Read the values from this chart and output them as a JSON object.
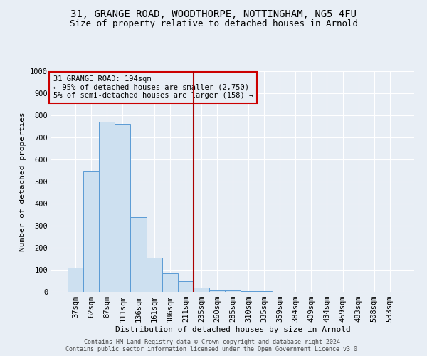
{
  "title_line1": "31, GRANGE ROAD, WOODTHORPE, NOTTINGHAM, NG5 4FU",
  "title_line2": "Size of property relative to detached houses in Arnold",
  "xlabel": "Distribution of detached houses by size in Arnold",
  "ylabel": "Number of detached properties",
  "categories": [
    "37sqm",
    "62sqm",
    "87sqm",
    "111sqm",
    "136sqm",
    "161sqm",
    "186sqm",
    "211sqm",
    "235sqm",
    "260sqm",
    "285sqm",
    "310sqm",
    "335sqm",
    "359sqm",
    "384sqm",
    "409sqm",
    "434sqm",
    "459sqm",
    "483sqm",
    "508sqm",
    "533sqm"
  ],
  "values": [
    110,
    550,
    770,
    760,
    340,
    155,
    85,
    50,
    20,
    8,
    5,
    3,
    2,
    1,
    1,
    1,
    0,
    0,
    0,
    0,
    0
  ],
  "bar_color": "#cde0f0",
  "bar_edge_color": "#5b9bd5",
  "vline_x": 7.5,
  "vline_color": "#aa0000",
  "annotation_box_text": "31 GRANGE ROAD: 194sqm\n← 95% of detached houses are smaller (2,750)\n5% of semi-detached houses are larger (158) →",
  "annotation_box_color": "#cc0000",
  "footer_line1": "Contains HM Land Registry data © Crown copyright and database right 2024.",
  "footer_line2": "Contains public sector information licensed under the Open Government Licence v3.0.",
  "background_color": "#e8eef5",
  "ylim": [
    0,
    1000
  ],
  "yticks": [
    0,
    100,
    200,
    300,
    400,
    500,
    600,
    700,
    800,
    900,
    1000
  ],
  "title_fontsize": 10,
  "subtitle_fontsize": 9,
  "ylabel_fontsize": 8,
  "xlabel_fontsize": 8,
  "tick_fontsize": 7.5,
  "ann_fontsize": 7.5,
  "footer_fontsize": 6
}
